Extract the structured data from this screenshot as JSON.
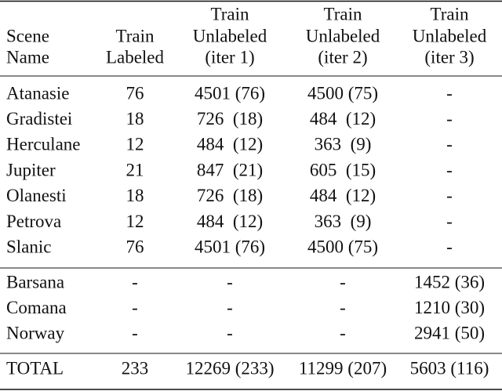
{
  "table": {
    "header": [
      [
        "Scene",
        "Name"
      ],
      [
        "Train",
        "Labeled"
      ],
      [
        "Train",
        "Unlabeled",
        "(iter 1)"
      ],
      [
        "Train",
        "Unlabeled",
        "(iter 2)"
      ],
      [
        "Train",
        "Unlabeled",
        "(iter 3)"
      ]
    ],
    "groups": [
      {
        "rows": [
          [
            "Atanasie",
            "76",
            "4501 (76)",
            "4500 (75)",
            "-"
          ],
          [
            "Gradistei",
            "18",
            "726  (18)",
            "484  (12)",
            "-"
          ],
          [
            "Herculane",
            "12",
            "484  (12)",
            "363  (9)",
            "-"
          ],
          [
            "Jupiter",
            "21",
            "847  (21)",
            "605  (15)",
            "-"
          ],
          [
            "Olanesti",
            "18",
            "726  (18)",
            "484  (12)",
            "-"
          ],
          [
            "Petrova",
            "12",
            "484  (12)",
            "363  (9)",
            "-"
          ],
          [
            "Slanic",
            "76",
            "4501 (76)",
            "4500 (75)",
            "-"
          ]
        ]
      },
      {
        "rows": [
          [
            "Barsana",
            "-",
            "-",
            "-",
            "1452 (36)"
          ],
          [
            "Comana",
            "-",
            "-",
            "-",
            "1210 (30)"
          ],
          [
            "Norway",
            "-",
            "-",
            "-",
            "2941 (50)"
          ]
        ]
      },
      {
        "rows": [
          [
            "TOTAL",
            "233",
            "12269 (233)",
            "11299 (207)",
            "5603 (116)"
          ]
        ]
      }
    ]
  }
}
